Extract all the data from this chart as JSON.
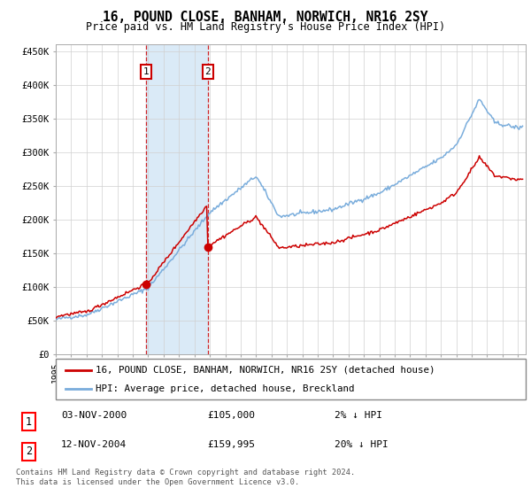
{
  "title": "16, POUND CLOSE, BANHAM, NORWICH, NR16 2SY",
  "subtitle": "Price paid vs. HM Land Registry's House Price Index (HPI)",
  "ylabel_ticks": [
    "£0",
    "£50K",
    "£100K",
    "£150K",
    "£200K",
    "£250K",
    "£300K",
    "£350K",
    "£400K",
    "£450K"
  ],
  "ylim": [
    0,
    460000
  ],
  "xlim_start": 1995.0,
  "xlim_end": 2025.5,
  "hpi_color": "#7aaddc",
  "price_color": "#cc0000",
  "shade_color": "#daeaf7",
  "transaction1_x": 2000.84,
  "transaction1_y": 105000,
  "transaction2_x": 2004.87,
  "transaction2_y": 159995,
  "legend_property": "16, POUND CLOSE, BANHAM, NORWICH, NR16 2SY (detached house)",
  "legend_hpi": "HPI: Average price, detached house, Breckland",
  "footer": "Contains HM Land Registry data © Crown copyright and database right 2024.\nThis data is licensed under the Open Government Licence v3.0.",
  "table_rows": [
    {
      "num": "1",
      "date": "03-NOV-2000",
      "price": "£105,000",
      "hpi": "2% ↓ HPI"
    },
    {
      "num": "2",
      "date": "12-NOV-2004",
      "price": "£159,995",
      "hpi": "20% ↓ HPI"
    }
  ]
}
